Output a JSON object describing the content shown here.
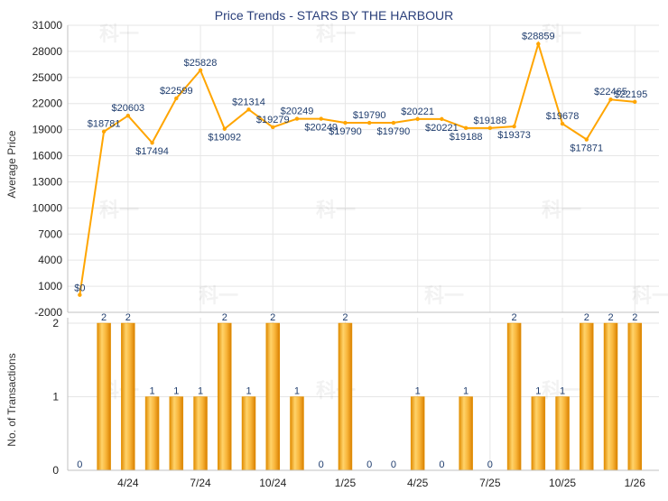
{
  "chart_data": {
    "title": "Price Trends - STARS BY THE HARBOUR",
    "x_tick_labels": [
      "4/24",
      "7/24",
      "10/24",
      "1/25",
      "4/25",
      "7/25",
      "10/25",
      "1/26"
    ],
    "price_chart": {
      "type": "line",
      "ylabel": "Average Price",
      "ylim": [
        -2000,
        31000
      ],
      "yticks": [
        -2000,
        1000,
        4000,
        7000,
        10000,
        13000,
        16000,
        19000,
        22000,
        25000,
        28000,
        31000
      ],
      "grid": true,
      "color": "#ffa500",
      "values": [
        0,
        18781,
        20603,
        17494,
        22599,
        25828,
        19092,
        21314,
        19279,
        20249,
        20249,
        19790,
        19790,
        19790,
        20221,
        20221,
        19188,
        19188,
        19373,
        28859,
        19678,
        17871,
        22465,
        22195
      ],
      "data_labels": [
        "$0",
        "$18781",
        "$20603",
        "$17494",
        "$22599",
        "$25828",
        "$19092",
        "$21314",
        "$19279",
        "$20249",
        "$20249",
        "$19790",
        "$19790",
        "$19790",
        "$20221",
        "$20221",
        "$19188",
        "$19188",
        "$19373",
        "$28859",
        "$19678",
        "$17871",
        "$22465",
        "$22195"
      ]
    },
    "transactions_chart": {
      "type": "bar",
      "ylabel": "No. of Transactions",
      "ylim": [
        0,
        2
      ],
      "yticks": [
        0,
        1,
        2
      ],
      "grid": true,
      "color": "#f5a623",
      "values": [
        0,
        2,
        2,
        1,
        1,
        1,
        2,
        1,
        2,
        1,
        0,
        2,
        0,
        0,
        1,
        0,
        1,
        0,
        2,
        1,
        1,
        2,
        2,
        2
      ],
      "data_labels": [
        "0",
        "2",
        "2",
        "1",
        "1",
        "1",
        "2",
        "1",
        "2",
        "1",
        "0",
        "2",
        "0",
        "0",
        "1",
        "0",
        "1",
        "0",
        "2",
        "1",
        "1",
        "2",
        "2",
        "2"
      ]
    },
    "watermark": "科一"
  }
}
